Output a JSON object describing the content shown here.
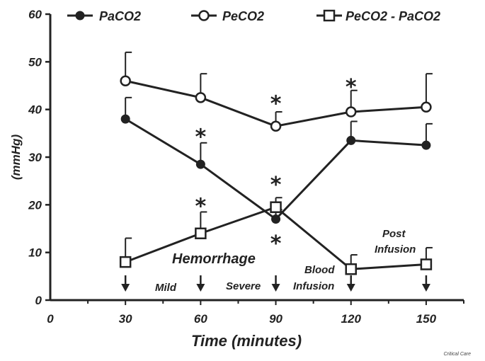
{
  "chart_data": {
    "type": "line",
    "title": "",
    "xlabel": "Time (minutes)",
    "ylabel": "(mmHg)",
    "xlim": [
      0,
      165
    ],
    "ylim": [
      0,
      60
    ],
    "xticks": [
      "0",
      "30",
      "60",
      "90",
      "120",
      "150"
    ],
    "yticks": [
      "0",
      "10",
      "20",
      "30",
      "40",
      "50",
      "60"
    ],
    "grid": false,
    "legend_position": "top",
    "x": [
      30,
      60,
      90,
      120,
      150
    ],
    "series": [
      {
        "name": "PaCO2",
        "marker": "filled-circle",
        "values": [
          38,
          28.5,
          17,
          33.5,
          32.5
        ],
        "error": [
          4.5,
          4.5,
          2,
          4,
          4.5
        ],
        "error_side": "up"
      },
      {
        "name": "PeCO2",
        "marker": "open-circle",
        "values": [
          46,
          42.5,
          36.5,
          39.5,
          40.5
        ],
        "error": [
          6,
          5,
          3,
          4.5,
          7
        ],
        "error_side": "up"
      },
      {
        "name": "PeCO2 - PaCO2",
        "marker": "open-square",
        "values": [
          8,
          14,
          19.5,
          6.5,
          7.5
        ],
        "error": [
          5,
          4.5,
          2,
          3,
          3.5
        ],
        "error_side": "up"
      }
    ],
    "significance_markers": [
      {
        "x": 60,
        "y": 34.5,
        "label": "*"
      },
      {
        "x": 60,
        "y": 20,
        "label": "*"
      },
      {
        "x": 90,
        "y": 41.5,
        "label": "*"
      },
      {
        "x": 90,
        "y": 24.5,
        "label": "*"
      },
      {
        "x": 90,
        "y": 12.2,
        "label": "*"
      },
      {
        "x": 120,
        "y": 45,
        "label": "*"
      }
    ],
    "annotations": {
      "hemorrhage": "Hemorrhage",
      "mild": "Mild",
      "severe": "Severe",
      "blood_infusion_1": "Blood",
      "blood_infusion_2": "Infusion",
      "post_infusion_1": "Post",
      "post_infusion_2": "Infusion"
    },
    "event_arrows_x": [
      30,
      60,
      90,
      120,
      150
    ],
    "colors": {
      "ink": "#222222",
      "background": "#ffffff"
    }
  },
  "credit": "Critical Care"
}
